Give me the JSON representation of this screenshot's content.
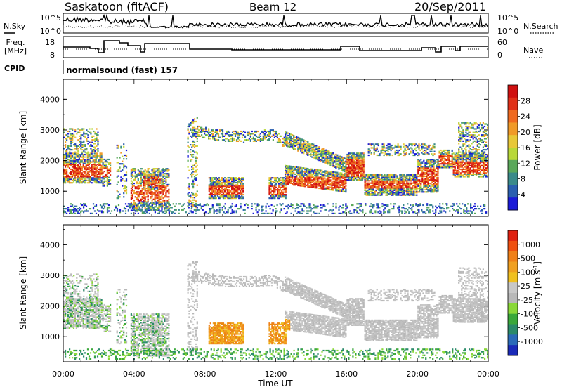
{
  "header": {
    "station": "Saskatoon (fitACF)",
    "beam": "Beam 12",
    "date": "20/Sep/2011"
  },
  "noise_panel": {
    "left_label": "N.Sky",
    "right_label": "N.Search",
    "left_ticks": [
      "10^5",
      "10^0"
    ],
    "right_ticks": [
      "10^5",
      "10^0"
    ]
  },
  "freq_panel": {
    "left_label_1": "Freq.",
    "left_label_2": "[MHz]",
    "right_label": "Nave",
    "left_ticks": [
      "18",
      "8"
    ],
    "right_ticks": [
      "60",
      "0"
    ]
  },
  "cpid": {
    "label": "CPID",
    "value": "normalsound (fast) 157"
  },
  "chart_data": [
    {
      "type": "heatmap",
      "title": "",
      "ylabel": "Slant Range [km]",
      "ylim": [
        180,
        4650
      ],
      "yticks": [
        "1000",
        "2000",
        "3000",
        "4000"
      ],
      "colorbar": {
        "label": "Power [dB]",
        "ticks": [
          "4",
          "8",
          "12",
          "16",
          "20",
          "24",
          "28"
        ],
        "colors": [
          "#1a1ad8",
          "#2a5fb0",
          "#3a8a8a",
          "#5aa85a",
          "#b8d838",
          "#e8c838",
          "#f09a28",
          "#f06a20",
          "#e03018",
          "#d01010"
        ]
      }
    },
    {
      "type": "heatmap",
      "title": "",
      "ylabel": "Slant Range [km]",
      "ylim": [
        180,
        4650
      ],
      "yticks": [
        "1000",
        "2000",
        "3000",
        "4000"
      ],
      "xlabel": "Time UT",
      "xticks": [
        "00:00",
        "04:00",
        "08:00",
        "12:00",
        "16:00",
        "20:00",
        "00:00"
      ],
      "colorbar": {
        "label": "Velocity [m s",
        "label_sup": "-1",
        "label_end": "]",
        "ticks": [
          "1000",
          "500",
          "100",
          "25",
          "-25",
          "-100",
          "-500",
          "-1000"
        ],
        "colors": [
          "#1a2ab8",
          "#2a6ab8",
          "#2a8a6a",
          "#3aa83a",
          "#8ad838",
          "#b8b8b8",
          "#c8c8c8",
          "#f0c020",
          "#f0a020",
          "#f08018",
          "#f05010",
          "#e02010"
        ]
      }
    }
  ]
}
